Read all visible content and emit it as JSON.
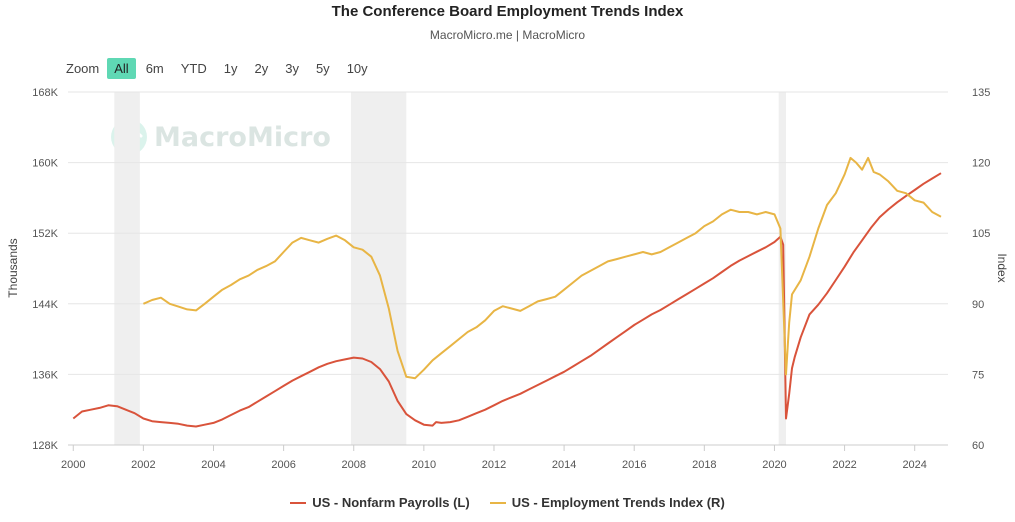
{
  "title": "The Conference Board Employment Trends Index",
  "subtitle": "MacroMicro.me | MacroMicro",
  "watermark": "MacroMicro",
  "zoom": {
    "label": "Zoom",
    "buttons": [
      "All",
      "6m",
      "YTD",
      "1y",
      "2y",
      "3y",
      "5y",
      "10y"
    ],
    "active": "All",
    "active_color": "#5fd8b4"
  },
  "chart_data": {
    "type": "line",
    "x_range": [
      1999.85,
      2024.95
    ],
    "x_ticks": [
      2000,
      2002,
      2004,
      2006,
      2008,
      2010,
      2012,
      2014,
      2016,
      2018,
      2020,
      2022,
      2024
    ],
    "left_axis": {
      "title": "Thousands",
      "range": [
        128,
        168
      ],
      "ticks": [
        128,
        136,
        144,
        152,
        160,
        168
      ],
      "tick_labels": [
        "128K",
        "136K",
        "144K",
        "152K",
        "160K",
        "168K"
      ]
    },
    "right_axis": {
      "title": "Index",
      "range": [
        60,
        135
      ],
      "ticks": [
        60,
        75,
        90,
        105,
        120,
        135
      ],
      "tick_labels": [
        "60",
        "75",
        "90",
        "105",
        "120",
        "135"
      ]
    },
    "recessions": [
      [
        2001.17,
        2001.9
      ],
      [
        2007.92,
        2009.5
      ],
      [
        2020.12,
        2020.33
      ]
    ],
    "legend": [
      "US - Nonfarm Payrolls (L)",
      "US - Employment Trends Index (R)"
    ],
    "series": [
      {
        "name": "US - Nonfarm Payrolls (L)",
        "axis": "left",
        "color": "#d9533b",
        "points": [
          [
            2000.0,
            131.0
          ],
          [
            2000.25,
            131.8
          ],
          [
            2000.5,
            132.0
          ],
          [
            2000.75,
            132.2
          ],
          [
            2001.0,
            132.5
          ],
          [
            2001.25,
            132.4
          ],
          [
            2001.5,
            132.0
          ],
          [
            2001.75,
            131.6
          ],
          [
            2002.0,
            131.0
          ],
          [
            2002.25,
            130.7
          ],
          [
            2002.5,
            130.6
          ],
          [
            2002.75,
            130.5
          ],
          [
            2003.0,
            130.4
          ],
          [
            2003.25,
            130.2
          ],
          [
            2003.5,
            130.1
          ],
          [
            2003.75,
            130.3
          ],
          [
            2004.0,
            130.5
          ],
          [
            2004.25,
            130.9
          ],
          [
            2004.5,
            131.4
          ],
          [
            2004.75,
            131.9
          ],
          [
            2005.0,
            132.3
          ],
          [
            2005.25,
            132.9
          ],
          [
            2005.5,
            133.5
          ],
          [
            2005.75,
            134.1
          ],
          [
            2006.0,
            134.7
          ],
          [
            2006.25,
            135.3
          ],
          [
            2006.5,
            135.8
          ],
          [
            2006.75,
            136.3
          ],
          [
            2007.0,
            136.8
          ],
          [
            2007.25,
            137.2
          ],
          [
            2007.5,
            137.5
          ],
          [
            2007.75,
            137.7
          ],
          [
            2008.0,
            137.9
          ],
          [
            2008.25,
            137.8
          ],
          [
            2008.5,
            137.4
          ],
          [
            2008.75,
            136.6
          ],
          [
            2009.0,
            135.2
          ],
          [
            2009.25,
            133.0
          ],
          [
            2009.5,
            131.5
          ],
          [
            2009.75,
            130.8
          ],
          [
            2010.0,
            130.3
          ],
          [
            2010.25,
            130.2
          ],
          [
            2010.35,
            130.6
          ],
          [
            2010.5,
            130.5
          ],
          [
            2010.75,
            130.6
          ],
          [
            2011.0,
            130.8
          ],
          [
            2011.25,
            131.2
          ],
          [
            2011.5,
            131.6
          ],
          [
            2011.75,
            132.0
          ],
          [
            2012.0,
            132.5
          ],
          [
            2012.25,
            133.0
          ],
          [
            2012.5,
            133.4
          ],
          [
            2012.75,
            133.8
          ],
          [
            2013.0,
            134.3
          ],
          [
            2013.25,
            134.8
          ],
          [
            2013.5,
            135.3
          ],
          [
            2013.75,
            135.8
          ],
          [
            2014.0,
            136.3
          ],
          [
            2014.25,
            136.9
          ],
          [
            2014.5,
            137.5
          ],
          [
            2014.75,
            138.1
          ],
          [
            2015.0,
            138.8
          ],
          [
            2015.25,
            139.5
          ],
          [
            2015.5,
            140.2
          ],
          [
            2015.75,
            140.9
          ],
          [
            2016.0,
            141.6
          ],
          [
            2016.25,
            142.2
          ],
          [
            2016.5,
            142.8
          ],
          [
            2016.75,
            143.3
          ],
          [
            2017.0,
            143.9
          ],
          [
            2017.25,
            144.5
          ],
          [
            2017.5,
            145.1
          ],
          [
            2017.75,
            145.7
          ],
          [
            2018.0,
            146.3
          ],
          [
            2018.25,
            146.9
          ],
          [
            2018.5,
            147.6
          ],
          [
            2018.75,
            148.3
          ],
          [
            2019.0,
            148.9
          ],
          [
            2019.25,
            149.4
          ],
          [
            2019.5,
            149.9
          ],
          [
            2019.75,
            150.4
          ],
          [
            2020.0,
            151.0
          ],
          [
            2020.17,
            151.6
          ],
          [
            2020.25,
            150.7
          ],
          [
            2020.33,
            131.0
          ],
          [
            2020.42,
            133.8
          ],
          [
            2020.5,
            136.7
          ],
          [
            2020.58,
            138.0
          ],
          [
            2020.75,
            140.2
          ],
          [
            2021.0,
            142.8
          ],
          [
            2021.25,
            143.9
          ],
          [
            2021.5,
            145.2
          ],
          [
            2021.75,
            146.7
          ],
          [
            2022.0,
            148.2
          ],
          [
            2022.25,
            149.8
          ],
          [
            2022.5,
            151.2
          ],
          [
            2022.75,
            152.6
          ],
          [
            2023.0,
            153.8
          ],
          [
            2023.25,
            154.7
          ],
          [
            2023.5,
            155.5
          ],
          [
            2023.75,
            156.2
          ],
          [
            2024.0,
            156.9
          ],
          [
            2024.25,
            157.6
          ],
          [
            2024.5,
            158.2
          ],
          [
            2024.75,
            158.8
          ]
        ]
      },
      {
        "name": "US - Employment Trends Index (R)",
        "axis": "right",
        "color": "#e8b545",
        "points": [
          [
            2002.0,
            90.0
          ],
          [
            2002.25,
            90.8
          ],
          [
            2002.5,
            91.3
          ],
          [
            2002.75,
            90.0
          ],
          [
            2003.0,
            89.4
          ],
          [
            2003.25,
            88.8
          ],
          [
            2003.5,
            88.6
          ],
          [
            2003.75,
            90.0
          ],
          [
            2004.0,
            91.5
          ],
          [
            2004.25,
            93.0
          ],
          [
            2004.5,
            94.0
          ],
          [
            2004.75,
            95.2
          ],
          [
            2005.0,
            96.0
          ],
          [
            2005.25,
            97.2
          ],
          [
            2005.5,
            98.0
          ],
          [
            2005.75,
            99.0
          ],
          [
            2006.0,
            101.0
          ],
          [
            2006.25,
            103.0
          ],
          [
            2006.5,
            104.0
          ],
          [
            2006.75,
            103.5
          ],
          [
            2007.0,
            103.0
          ],
          [
            2007.25,
            103.8
          ],
          [
            2007.5,
            104.5
          ],
          [
            2007.75,
            103.5
          ],
          [
            2008.0,
            102.0
          ],
          [
            2008.25,
            101.5
          ],
          [
            2008.5,
            100.0
          ],
          [
            2008.75,
            96.0
          ],
          [
            2009.0,
            89.0
          ],
          [
            2009.25,
            80.0
          ],
          [
            2009.5,
            74.5
          ],
          [
            2009.75,
            74.2
          ],
          [
            2010.0,
            76.0
          ],
          [
            2010.25,
            78.0
          ],
          [
            2010.5,
            79.5
          ],
          [
            2010.75,
            81.0
          ],
          [
            2011.0,
            82.5
          ],
          [
            2011.25,
            84.0
          ],
          [
            2011.5,
            85.0
          ],
          [
            2011.75,
            86.5
          ],
          [
            2012.0,
            88.5
          ],
          [
            2012.25,
            89.5
          ],
          [
            2012.5,
            89.0
          ],
          [
            2012.75,
            88.5
          ],
          [
            2013.0,
            89.5
          ],
          [
            2013.25,
            90.5
          ],
          [
            2013.5,
            91.0
          ],
          [
            2013.75,
            91.5
          ],
          [
            2014.0,
            93.0
          ],
          [
            2014.25,
            94.5
          ],
          [
            2014.5,
            96.0
          ],
          [
            2014.75,
            97.0
          ],
          [
            2015.0,
            98.0
          ],
          [
            2015.25,
            99.0
          ],
          [
            2015.5,
            99.5
          ],
          [
            2015.75,
            100.0
          ],
          [
            2016.0,
            100.5
          ],
          [
            2016.25,
            101.0
          ],
          [
            2016.5,
            100.5
          ],
          [
            2016.75,
            101.0
          ],
          [
            2017.0,
            102.0
          ],
          [
            2017.25,
            103.0
          ],
          [
            2017.5,
            104.0
          ],
          [
            2017.75,
            105.0
          ],
          [
            2018.0,
            106.5
          ],
          [
            2018.25,
            107.5
          ],
          [
            2018.5,
            109.0
          ],
          [
            2018.75,
            110.0
          ],
          [
            2019.0,
            109.5
          ],
          [
            2019.25,
            109.5
          ],
          [
            2019.5,
            109.0
          ],
          [
            2019.75,
            109.5
          ],
          [
            2020.0,
            109.0
          ],
          [
            2020.17,
            106.0
          ],
          [
            2020.33,
            75.0
          ],
          [
            2020.42,
            86.0
          ],
          [
            2020.5,
            92.0
          ],
          [
            2020.75,
            95.0
          ],
          [
            2021.0,
            100.0
          ],
          [
            2021.25,
            106.0
          ],
          [
            2021.5,
            111.0
          ],
          [
            2021.75,
            113.5
          ],
          [
            2022.0,
            117.5
          ],
          [
            2022.17,
            121.0
          ],
          [
            2022.33,
            120.0
          ],
          [
            2022.5,
            118.5
          ],
          [
            2022.67,
            121.0
          ],
          [
            2022.83,
            118.0
          ],
          [
            2023.0,
            117.5
          ],
          [
            2023.25,
            116.0
          ],
          [
            2023.5,
            114.0
          ],
          [
            2023.75,
            113.5
          ],
          [
            2024.0,
            112.0
          ],
          [
            2024.25,
            111.5
          ],
          [
            2024.5,
            109.5
          ],
          [
            2024.75,
            108.5
          ]
        ]
      }
    ]
  }
}
